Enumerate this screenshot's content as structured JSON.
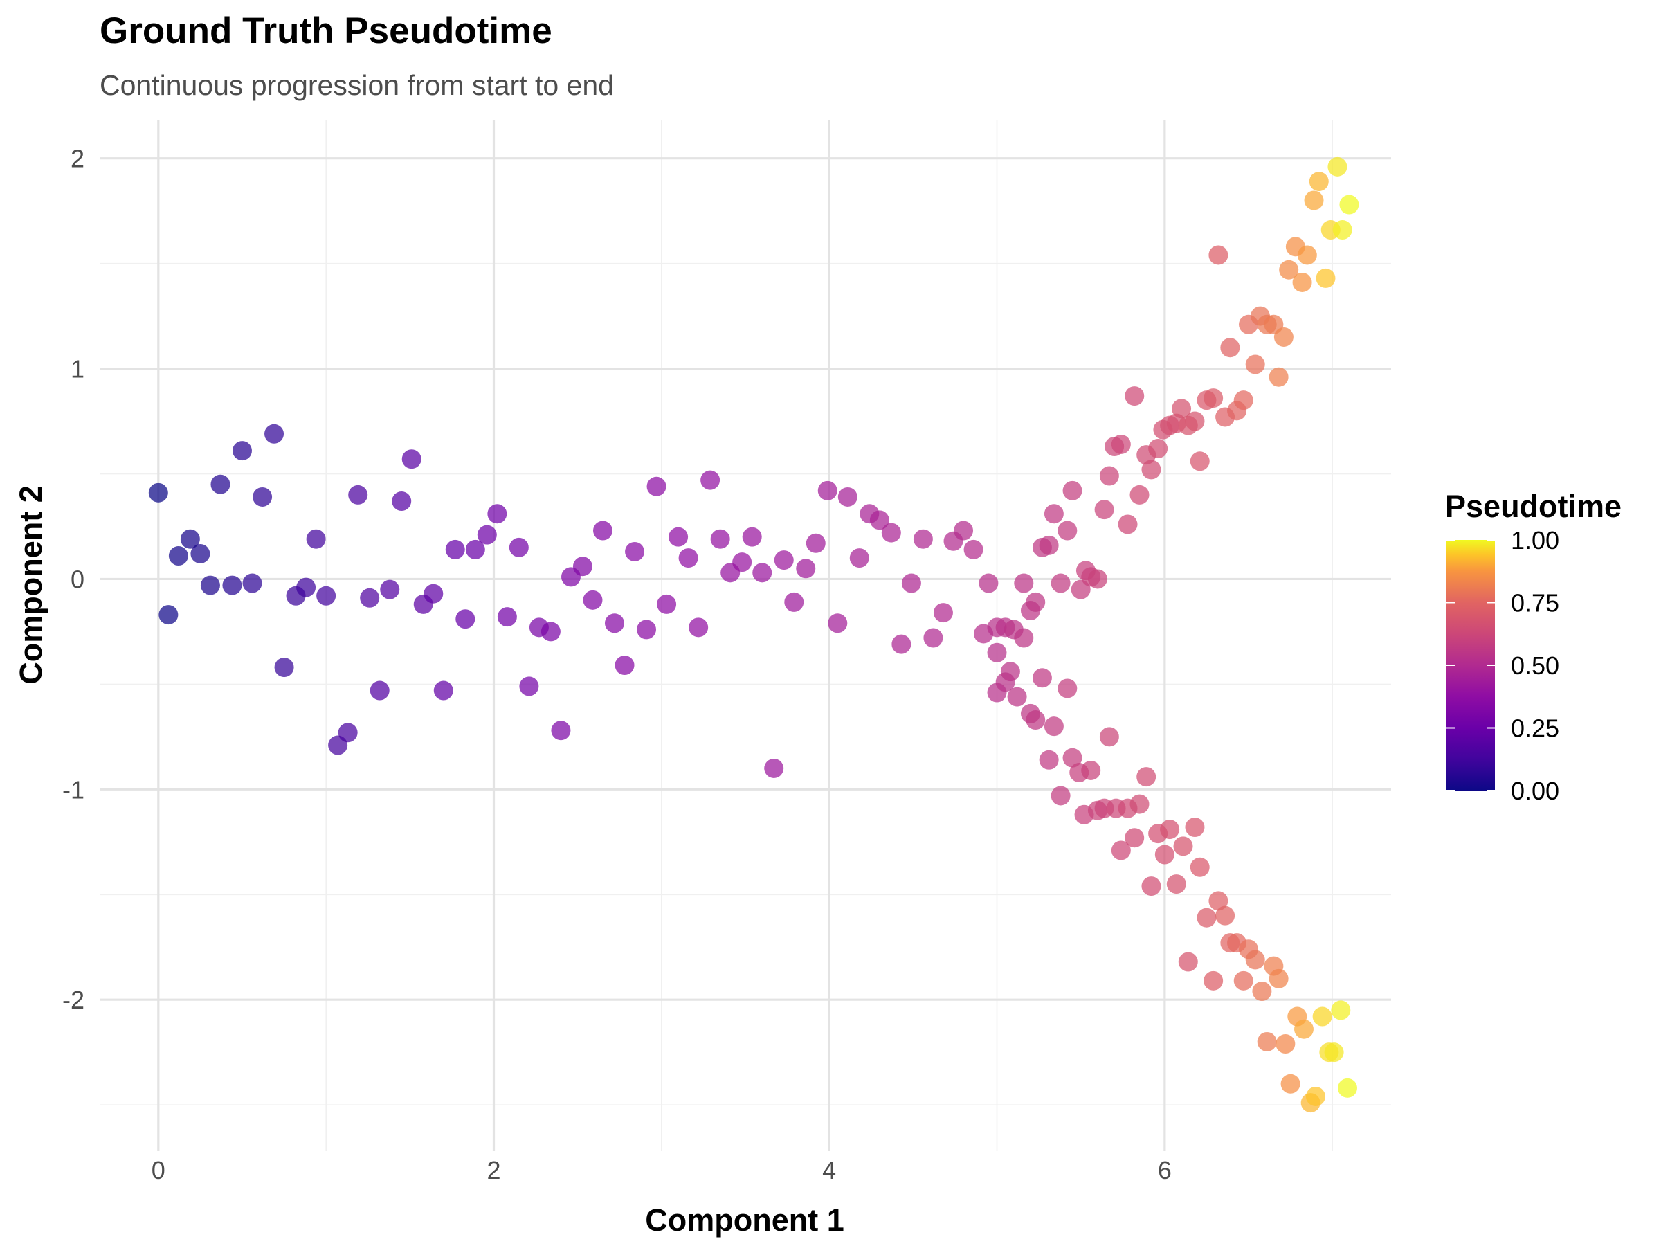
{
  "chart_data": {
    "type": "scatter",
    "title": "Ground Truth Pseudotime",
    "subtitle": "Continuous progression from start to end",
    "xlabel": "Component 1",
    "ylabel": "Component 2",
    "xlim": [
      -0.35,
      7.35
    ],
    "ylim": [
      -2.72,
      2.18
    ],
    "x_ticks": [
      0,
      2,
      4,
      6
    ],
    "y_ticks": [
      -2,
      -1,
      0,
      1,
      2
    ],
    "x_tick_labels": [
      "0",
      "2",
      "4",
      "6"
    ],
    "y_tick_labels": [
      "-2",
      "-1",
      "0",
      "1",
      "2"
    ],
    "grid": true,
    "colorscale": "plasma",
    "legend": {
      "title": "Pseudotime",
      "position": "right",
      "ticks": [
        0,
        0.25,
        0.5,
        0.75,
        1
      ],
      "tick_labels": [
        "0.00",
        "0.25",
        "0.50",
        "0.75",
        "1.00"
      ]
    },
    "points": [
      {
        "x": 0.0,
        "y": 0.41,
        "c": 0.0
      },
      {
        "x": 0.06,
        "y": -0.17,
        "c": 0.01
      },
      {
        "x": 0.12,
        "y": 0.11,
        "c": 0.02
      },
      {
        "x": 0.19,
        "y": 0.19,
        "c": 0.03
      },
      {
        "x": 0.25,
        "y": 0.12,
        "c": 0.035
      },
      {
        "x": 0.31,
        "y": -0.03,
        "c": 0.04
      },
      {
        "x": 0.37,
        "y": 0.45,
        "c": 0.05
      },
      {
        "x": 0.44,
        "y": -0.03,
        "c": 0.06
      },
      {
        "x": 0.5,
        "y": 0.61,
        "c": 0.07
      },
      {
        "x": 0.56,
        "y": -0.02,
        "c": 0.08
      },
      {
        "x": 0.62,
        "y": 0.39,
        "c": 0.085
      },
      {
        "x": 0.69,
        "y": 0.69,
        "c": 0.09
      },
      {
        "x": 0.75,
        "y": -0.42,
        "c": 0.1
      },
      {
        "x": 0.82,
        "y": -0.08,
        "c": 0.11
      },
      {
        "x": 0.88,
        "y": -0.04,
        "c": 0.12
      },
      {
        "x": 0.94,
        "y": 0.19,
        "c": 0.13
      },
      {
        "x": 1.0,
        "y": -0.08,
        "c": 0.135
      },
      {
        "x": 1.07,
        "y": -0.79,
        "c": 0.14
      },
      {
        "x": 1.13,
        "y": -0.73,
        "c": 0.15
      },
      {
        "x": 1.19,
        "y": 0.4,
        "c": 0.16
      },
      {
        "x": 1.26,
        "y": -0.09,
        "c": 0.17
      },
      {
        "x": 1.32,
        "y": -0.53,
        "c": 0.18
      },
      {
        "x": 1.38,
        "y": -0.05,
        "c": 0.185
      },
      {
        "x": 1.45,
        "y": 0.37,
        "c": 0.19
      },
      {
        "x": 1.51,
        "y": 0.57,
        "c": 0.2
      },
      {
        "x": 1.58,
        "y": -0.12,
        "c": 0.21
      },
      {
        "x": 1.64,
        "y": -0.07,
        "c": 0.22
      },
      {
        "x": 1.7,
        "y": -0.53,
        "c": 0.23
      },
      {
        "x": 1.77,
        "y": 0.14,
        "c": 0.235
      },
      {
        "x": 1.83,
        "y": -0.19,
        "c": 0.24
      },
      {
        "x": 1.89,
        "y": 0.14,
        "c": 0.25
      },
      {
        "x": 1.96,
        "y": 0.21,
        "c": 0.26
      },
      {
        "x": 2.02,
        "y": 0.31,
        "c": 0.27
      },
      {
        "x": 2.08,
        "y": -0.18,
        "c": 0.28
      },
      {
        "x": 2.15,
        "y": 0.15,
        "c": 0.285
      },
      {
        "x": 2.21,
        "y": -0.51,
        "c": 0.29
      },
      {
        "x": 2.27,
        "y": -0.23,
        "c": 0.3
      },
      {
        "x": 2.34,
        "y": -0.25,
        "c": 0.31
      },
      {
        "x": 2.4,
        "y": -0.72,
        "c": 0.315
      },
      {
        "x": 2.46,
        "y": 0.01,
        "c": 0.32
      },
      {
        "x": 2.53,
        "y": 0.06,
        "c": 0.33
      },
      {
        "x": 2.59,
        "y": -0.1,
        "c": 0.335
      },
      {
        "x": 2.65,
        "y": 0.23,
        "c": 0.34
      },
      {
        "x": 2.72,
        "y": -0.21,
        "c": 0.345
      },
      {
        "x": 2.78,
        "y": -0.41,
        "c": 0.35
      },
      {
        "x": 2.84,
        "y": 0.13,
        "c": 0.355
      },
      {
        "x": 2.91,
        "y": -0.24,
        "c": 0.36
      },
      {
        "x": 2.97,
        "y": 0.44,
        "c": 0.365
      },
      {
        "x": 3.03,
        "y": -0.12,
        "c": 0.37
      },
      {
        "x": 3.1,
        "y": 0.2,
        "c": 0.375
      },
      {
        "x": 3.16,
        "y": 0.1,
        "c": 0.38
      },
      {
        "x": 3.22,
        "y": -0.23,
        "c": 0.385
      },
      {
        "x": 3.29,
        "y": 0.47,
        "c": 0.39
      },
      {
        "x": 3.35,
        "y": 0.19,
        "c": 0.395
      },
      {
        "x": 3.41,
        "y": 0.03,
        "c": 0.4
      },
      {
        "x": 3.48,
        "y": 0.08,
        "c": 0.405
      },
      {
        "x": 3.54,
        "y": 0.2,
        "c": 0.41
      },
      {
        "x": 3.6,
        "y": 0.03,
        "c": 0.415
      },
      {
        "x": 3.67,
        "y": -0.9,
        "c": 0.42
      },
      {
        "x": 3.73,
        "y": 0.09,
        "c": 0.425
      },
      {
        "x": 3.79,
        "y": -0.11,
        "c": 0.43
      },
      {
        "x": 3.86,
        "y": 0.05,
        "c": 0.435
      },
      {
        "x": 3.92,
        "y": 0.17,
        "c": 0.44
      },
      {
        "x": 3.99,
        "y": 0.42,
        "c": 0.445
      },
      {
        "x": 4.05,
        "y": -0.21,
        "c": 0.45
      },
      {
        "x": 4.11,
        "y": 0.39,
        "c": 0.455
      },
      {
        "x": 4.18,
        "y": 0.1,
        "c": 0.46
      },
      {
        "x": 4.24,
        "y": 0.31,
        "c": 0.465
      },
      {
        "x": 4.3,
        "y": 0.28,
        "c": 0.47
      },
      {
        "x": 4.37,
        "y": 0.22,
        "c": 0.475
      },
      {
        "x": 4.43,
        "y": -0.31,
        "c": 0.48
      },
      {
        "x": 4.49,
        "y": -0.02,
        "c": 0.485
      },
      {
        "x": 4.56,
        "y": 0.19,
        "c": 0.49
      },
      {
        "x": 4.62,
        "y": -0.28,
        "c": 0.495
      },
      {
        "x": 4.68,
        "y": -0.16,
        "c": 0.5
      },
      {
        "x": 4.74,
        "y": 0.18,
        "c": 0.505
      },
      {
        "x": 4.8,
        "y": 0.23,
        "c": 0.51
      },
      {
        "x": 4.86,
        "y": 0.14,
        "c": 0.515
      },
      {
        "x": 4.92,
        "y": -0.26,
        "c": 0.52
      },
      {
        "x": 4.95,
        "y": -0.02,
        "c": 0.525
      },
      {
        "x": 5.0,
        "y": -0.23,
        "c": 0.53
      },
      {
        "x": 5.05,
        "y": -0.23,
        "c": 0.535
      },
      {
        "x": 5.1,
        "y": -0.24,
        "c": 0.54
      },
      {
        "x": 5.16,
        "y": -0.02,
        "c": 0.545
      },
      {
        "x": 5.2,
        "y": -0.15,
        "c": 0.55
      },
      {
        "x": 5.23,
        "y": -0.11,
        "c": 0.555
      },
      {
        "x": 5.27,
        "y": 0.15,
        "c": 0.56
      },
      {
        "x": 5.31,
        "y": 0.16,
        "c": 0.565
      },
      {
        "x": 5.34,
        "y": 0.31,
        "c": 0.57
      },
      {
        "x": 5.38,
        "y": -0.02,
        "c": 0.575
      },
      {
        "x": 5.42,
        "y": 0.23,
        "c": 0.58
      },
      {
        "x": 5.45,
        "y": 0.42,
        "c": 0.585
      },
      {
        "x": 5.5,
        "y": -0.05,
        "c": 0.59
      },
      {
        "x": 5.53,
        "y": 0.04,
        "c": 0.595
      },
      {
        "x": 5.56,
        "y": 0.01,
        "c": 0.6
      },
      {
        "x": 5.6,
        "y": 0.0,
        "c": 0.605
      },
      {
        "x": 5.64,
        "y": 0.33,
        "c": 0.61
      },
      {
        "x": 5.67,
        "y": 0.49,
        "c": 0.615
      },
      {
        "x": 5.7,
        "y": 0.63,
        "c": 0.62
      },
      {
        "x": 5.74,
        "y": 0.64,
        "c": 0.625
      },
      {
        "x": 5.78,
        "y": 0.26,
        "c": 0.63
      },
      {
        "x": 5.82,
        "y": 0.87,
        "c": 0.635
      },
      {
        "x": 5.85,
        "y": 0.4,
        "c": 0.64
      },
      {
        "x": 5.89,
        "y": 0.59,
        "c": 0.645
      },
      {
        "x": 5.92,
        "y": 0.52,
        "c": 0.65
      },
      {
        "x": 5.96,
        "y": 0.62,
        "c": 0.655
      },
      {
        "x": 5.99,
        "y": 0.71,
        "c": 0.66
      },
      {
        "x": 6.03,
        "y": 0.73,
        "c": 0.665
      },
      {
        "x": 6.07,
        "y": 0.74,
        "c": 0.67
      },
      {
        "x": 6.1,
        "y": 0.81,
        "c": 0.675
      },
      {
        "x": 6.14,
        "y": 0.73,
        "c": 0.68
      },
      {
        "x": 6.18,
        "y": 0.75,
        "c": 0.685
      },
      {
        "x": 6.21,
        "y": 0.56,
        "c": 0.69
      },
      {
        "x": 6.25,
        "y": 0.85,
        "c": 0.7
      },
      {
        "x": 6.29,
        "y": 0.86,
        "c": 0.71
      },
      {
        "x": 6.32,
        "y": 1.54,
        "c": 0.72
      },
      {
        "x": 6.36,
        "y": 0.77,
        "c": 0.73
      },
      {
        "x": 6.39,
        "y": 1.1,
        "c": 0.74
      },
      {
        "x": 6.43,
        "y": 0.8,
        "c": 0.75
      },
      {
        "x": 6.47,
        "y": 0.85,
        "c": 0.76
      },
      {
        "x": 6.5,
        "y": 1.21,
        "c": 0.77
      },
      {
        "x": 6.54,
        "y": 1.02,
        "c": 0.78
      },
      {
        "x": 6.57,
        "y": 1.25,
        "c": 0.79
      },
      {
        "x": 6.61,
        "y": 1.21,
        "c": 0.8
      },
      {
        "x": 6.65,
        "y": 1.21,
        "c": 0.81
      },
      {
        "x": 6.68,
        "y": 0.96,
        "c": 0.82
      },
      {
        "x": 6.71,
        "y": 1.15,
        "c": 0.83
      },
      {
        "x": 6.74,
        "y": 1.47,
        "c": 0.85
      },
      {
        "x": 6.78,
        "y": 1.58,
        "c": 0.86
      },
      {
        "x": 6.82,
        "y": 1.41,
        "c": 0.87
      },
      {
        "x": 6.85,
        "y": 1.54,
        "c": 0.88
      },
      {
        "x": 6.89,
        "y": 1.8,
        "c": 0.9
      },
      {
        "x": 6.92,
        "y": 1.89,
        "c": 0.92
      },
      {
        "x": 6.96,
        "y": 1.43,
        "c": 0.94
      },
      {
        "x": 6.99,
        "y": 1.66,
        "c": 0.96
      },
      {
        "x": 7.03,
        "y": 1.96,
        "c": 0.98
      },
      {
        "x": 7.06,
        "y": 1.66,
        "c": 0.99
      },
      {
        "x": 7.1,
        "y": 1.78,
        "c": 1.0
      },
      {
        "x": 5.0,
        "y": -0.35,
        "c": 0.525
      },
      {
        "x": 5.0,
        "y": -0.54,
        "c": 0.53
      },
      {
        "x": 5.05,
        "y": -0.49,
        "c": 0.535
      },
      {
        "x": 5.08,
        "y": -0.44,
        "c": 0.54
      },
      {
        "x": 5.12,
        "y": -0.56,
        "c": 0.545
      },
      {
        "x": 5.16,
        "y": -0.28,
        "c": 0.55
      },
      {
        "x": 5.2,
        "y": -0.64,
        "c": 0.555
      },
      {
        "x": 5.23,
        "y": -0.67,
        "c": 0.56
      },
      {
        "x": 5.27,
        "y": -0.47,
        "c": 0.565
      },
      {
        "x": 5.31,
        "y": -0.86,
        "c": 0.57
      },
      {
        "x": 5.34,
        "y": -0.7,
        "c": 0.575
      },
      {
        "x": 5.38,
        "y": -1.03,
        "c": 0.58
      },
      {
        "x": 5.42,
        "y": -0.52,
        "c": 0.585
      },
      {
        "x": 5.45,
        "y": -0.85,
        "c": 0.59
      },
      {
        "x": 5.49,
        "y": -0.92,
        "c": 0.595
      },
      {
        "x": 5.52,
        "y": -1.12,
        "c": 0.6
      },
      {
        "x": 5.56,
        "y": -0.91,
        "c": 0.605
      },
      {
        "x": 5.6,
        "y": -1.1,
        "c": 0.61
      },
      {
        "x": 5.64,
        "y": -1.09,
        "c": 0.615
      },
      {
        "x": 5.67,
        "y": -0.75,
        "c": 0.62
      },
      {
        "x": 5.71,
        "y": -1.09,
        "c": 0.625
      },
      {
        "x": 5.74,
        "y": -1.29,
        "c": 0.63
      },
      {
        "x": 5.78,
        "y": -1.09,
        "c": 0.635
      },
      {
        "x": 5.82,
        "y": -1.23,
        "c": 0.64
      },
      {
        "x": 5.85,
        "y": -1.07,
        "c": 0.645
      },
      {
        "x": 5.89,
        "y": -0.94,
        "c": 0.65
      },
      {
        "x": 5.92,
        "y": -1.46,
        "c": 0.655
      },
      {
        "x": 5.96,
        "y": -1.21,
        "c": 0.66
      },
      {
        "x": 6.0,
        "y": -1.31,
        "c": 0.665
      },
      {
        "x": 6.03,
        "y": -1.19,
        "c": 0.67
      },
      {
        "x": 6.07,
        "y": -1.45,
        "c": 0.675
      },
      {
        "x": 6.11,
        "y": -1.27,
        "c": 0.68
      },
      {
        "x": 6.14,
        "y": -1.82,
        "c": 0.685
      },
      {
        "x": 6.18,
        "y": -1.18,
        "c": 0.69
      },
      {
        "x": 6.21,
        "y": -1.37,
        "c": 0.7
      },
      {
        "x": 6.25,
        "y": -1.61,
        "c": 0.71
      },
      {
        "x": 6.29,
        "y": -1.91,
        "c": 0.72
      },
      {
        "x": 6.32,
        "y": -1.53,
        "c": 0.73
      },
      {
        "x": 6.36,
        "y": -1.6,
        "c": 0.74
      },
      {
        "x": 6.39,
        "y": -1.73,
        "c": 0.75
      },
      {
        "x": 6.43,
        "y": -1.73,
        "c": 0.76
      },
      {
        "x": 6.47,
        "y": -1.91,
        "c": 0.77
      },
      {
        "x": 6.5,
        "y": -1.76,
        "c": 0.78
      },
      {
        "x": 6.54,
        "y": -1.81,
        "c": 0.79
      },
      {
        "x": 6.58,
        "y": -1.96,
        "c": 0.8
      },
      {
        "x": 6.61,
        "y": -2.2,
        "c": 0.81
      },
      {
        "x": 6.65,
        "y": -1.84,
        "c": 0.82
      },
      {
        "x": 6.68,
        "y": -1.9,
        "c": 0.83
      },
      {
        "x": 6.72,
        "y": -2.21,
        "c": 0.84
      },
      {
        "x": 6.75,
        "y": -2.4,
        "c": 0.86
      },
      {
        "x": 6.79,
        "y": -2.08,
        "c": 0.88
      },
      {
        "x": 6.83,
        "y": -2.14,
        "c": 0.9
      },
      {
        "x": 6.87,
        "y": -2.49,
        "c": 0.92
      },
      {
        "x": 6.9,
        "y": -2.46,
        "c": 0.94
      },
      {
        "x": 6.94,
        "y": -2.08,
        "c": 0.96
      },
      {
        "x": 6.98,
        "y": -2.25,
        "c": 0.97
      },
      {
        "x": 7.01,
        "y": -2.25,
        "c": 0.98
      },
      {
        "x": 7.05,
        "y": -2.05,
        "c": 0.99
      },
      {
        "x": 7.09,
        "y": -2.42,
        "c": 1.0
      }
    ]
  }
}
